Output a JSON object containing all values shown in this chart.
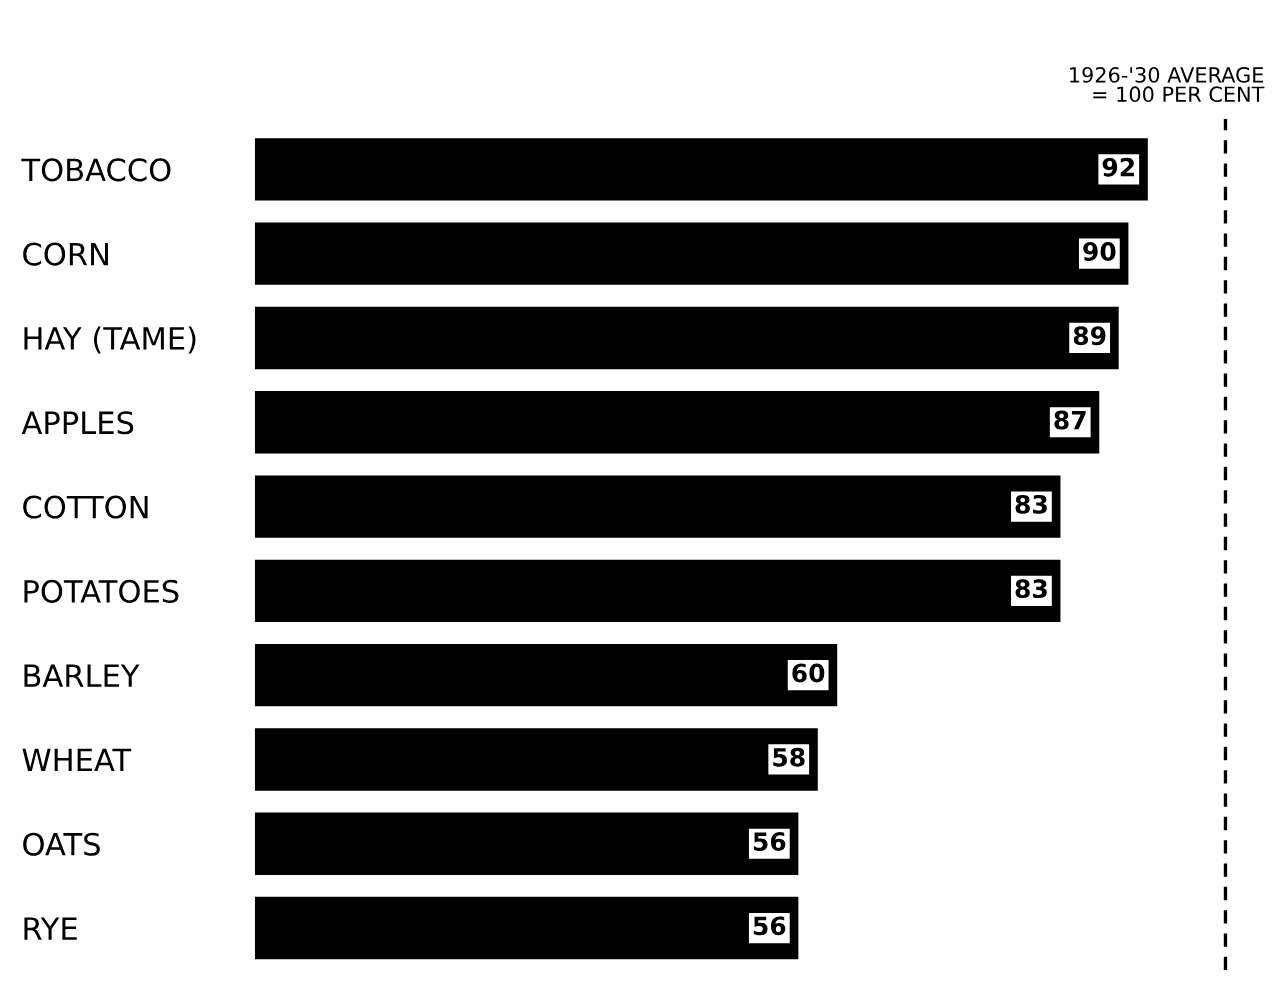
{
  "chart_data": {
    "type": "bar",
    "orientation": "horizontal",
    "categories": [
      "TOBACCO",
      "CORN",
      "HAY (TAME)",
      "APPLES",
      "COTTON",
      "POTATOES",
      "BARLEY",
      "WHEAT",
      "OATS",
      "RYE"
    ],
    "values": [
      92,
      90,
      89,
      87,
      83,
      83,
      60,
      58,
      56,
      56
    ],
    "color": "#000000",
    "data_labels": true,
    "tick_labels": "y",
    "grid": false,
    "legend": false,
    "ref_lines": [
      {
        "axis": "x",
        "value": 100,
        "label": "1926-'30 AVERAGE\n= 100 PER CENT",
        "color": "#000000",
        "line_style": "dashed"
      }
    ]
  }
}
